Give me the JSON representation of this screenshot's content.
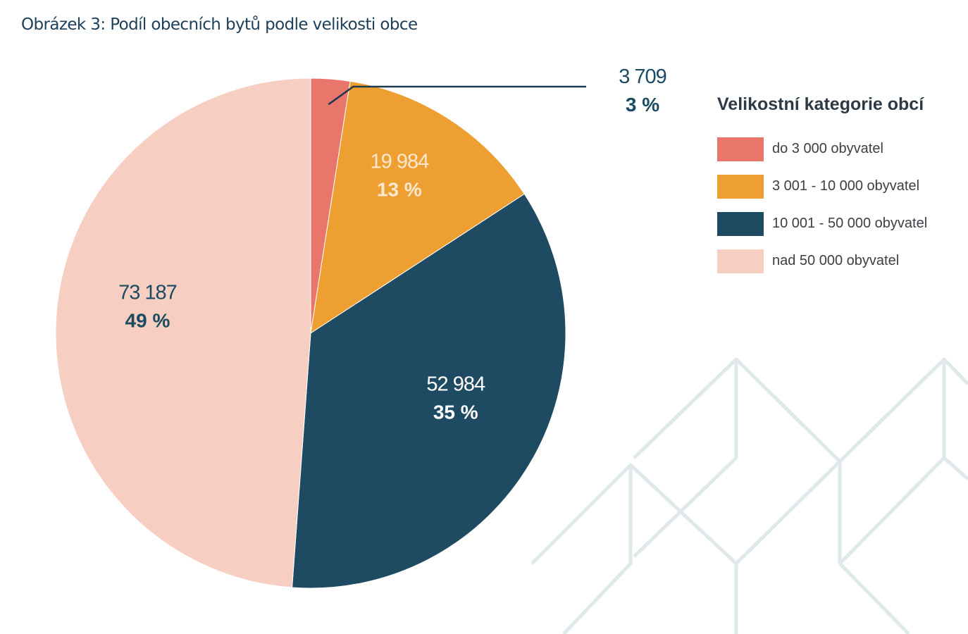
{
  "title": "Obrázek 3: Podíl obecních bytů podle velikosti obce",
  "chart_data": {
    "type": "pie",
    "legend_title": "Velikostní kategorie obcí",
    "legend_position": "right",
    "start_angle_deg": 0,
    "direction": "clockwise",
    "slices": [
      {
        "label": "do 3 000 obyvatel",
        "value": 3709,
        "value_label": "3 709",
        "percent_label": "3 %",
        "color": "#e8766a",
        "label_color": "#1b4a63",
        "label_outside": true
      },
      {
        "label": "3 001 - 10 000 obyvatel",
        "value": 19984,
        "value_label": "19 984",
        "percent_label": "13 %",
        "color": "#ee9f31",
        "label_color": "#fbe8cf",
        "label_outside": false
      },
      {
        "label": "10 001 - 50 000 obyvatel",
        "value": 52984,
        "value_label": "52 984",
        "percent_label": "35 %",
        "color": "#1e4b62",
        "label_color": "#ffffff",
        "label_outside": false
      },
      {
        "label": "nad 50 000 obyvatel",
        "value": 73187,
        "value_label": "73 187",
        "percent_label": "49 %",
        "color": "#f6cfc2",
        "label_color": "#1b4a63",
        "label_outside": false
      }
    ]
  },
  "colors": {
    "title": "#1c3f5a",
    "leader_line": "#1b3a4f",
    "background_pattern": "#dfe8ea"
  }
}
